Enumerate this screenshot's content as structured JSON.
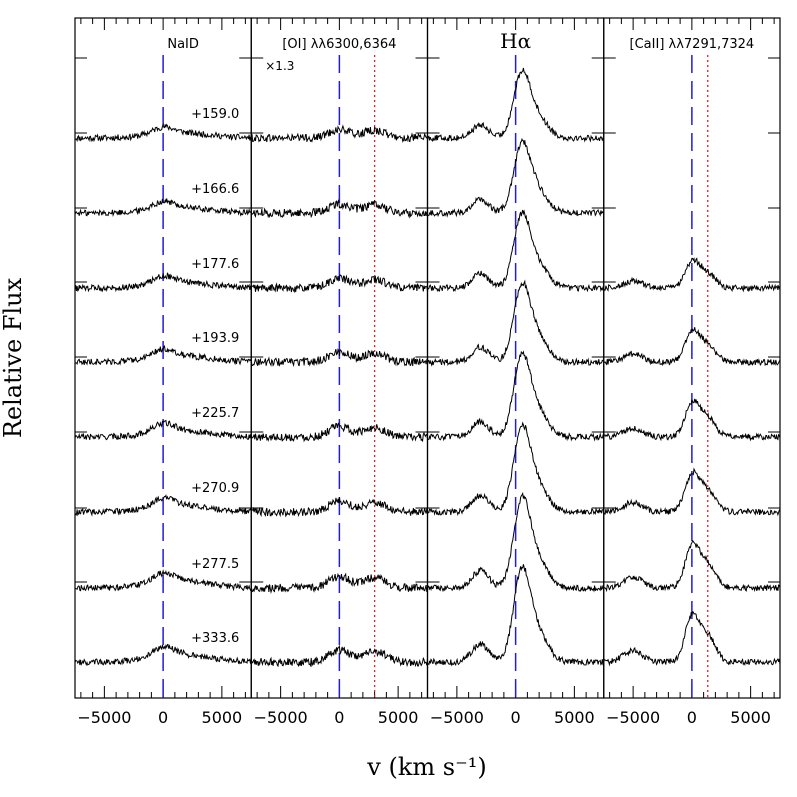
{
  "figure": {
    "ylabel": "Relative Flux",
    "xlabel": "v (km s⁻¹)"
  },
  "colors": {
    "spectrum": "#000000",
    "marker_blue": "#1f1fd6",
    "marker_red": "#e02020"
  },
  "chart_data": [
    {
      "type": "line",
      "title": "NaID",
      "xlim": [
        -7500,
        7500
      ],
      "xticks": [
        -5000,
        0,
        5000
      ],
      "xtick_labels": [
        "−5000",
        "0",
        "5000"
      ],
      "blue_dashed_velocity": 0,
      "epoch_labels": [
        "+159.0",
        "+166.6",
        "+177.6",
        "+193.9",
        "+225.7",
        "+270.9",
        "+277.5",
        "+333.6"
      ],
      "features": [
        {
          "center": 0,
          "width": 900,
          "amp": 8
        },
        {
          "center": 1500,
          "width": 2500,
          "amp": 6
        }
      ],
      "noise": 3
    },
    {
      "type": "line",
      "title": "[OI] λλ6300,6364",
      "annotation": "×1.3",
      "xlim": [
        -7500,
        7500
      ],
      "xticks": [
        -5000,
        0,
        5000
      ],
      "xtick_labels": [
        "−5000",
        "0",
        "5000"
      ],
      "blue_dashed_velocity": 0,
      "red_dotted_velocity": 3000,
      "features": [
        {
          "center": 0,
          "width": 900,
          "amp": 10
        },
        {
          "center": 3000,
          "width": 900,
          "amp": 9
        }
      ],
      "noise": 4
    },
    {
      "type": "line",
      "title": "Hα",
      "xlim": [
        -7500,
        7500
      ],
      "xticks": [
        -5000,
        0,
        5000
      ],
      "xtick_labels": [
        "−5000",
        "0",
        "5000"
      ],
      "blue_dashed_velocity": 0,
      "features": [
        {
          "center": 500,
          "width": 700,
          "amp": 70
        },
        {
          "center": 1800,
          "width": 900,
          "amp": 25
        },
        {
          "center": -3000,
          "width": 700,
          "amp": 15
        }
      ],
      "noise": 3
    },
    {
      "type": "line",
      "title": "[CaII] λλ7291,7324",
      "xlim": [
        -7500,
        7500
      ],
      "xticks": [
        -5000,
        0,
        5000
      ],
      "xtick_labels": [
        "−5000",
        "0",
        "5000"
      ],
      "blue_dashed_velocity": 0,
      "red_dotted_velocity": 1350,
      "features": [
        {
          "center": 0,
          "width": 600,
          "amp": 30
        },
        {
          "center": 1300,
          "width": 700,
          "amp": 18
        },
        {
          "center": -5000,
          "width": 800,
          "amp": 8
        }
      ],
      "noise": 3
    }
  ]
}
